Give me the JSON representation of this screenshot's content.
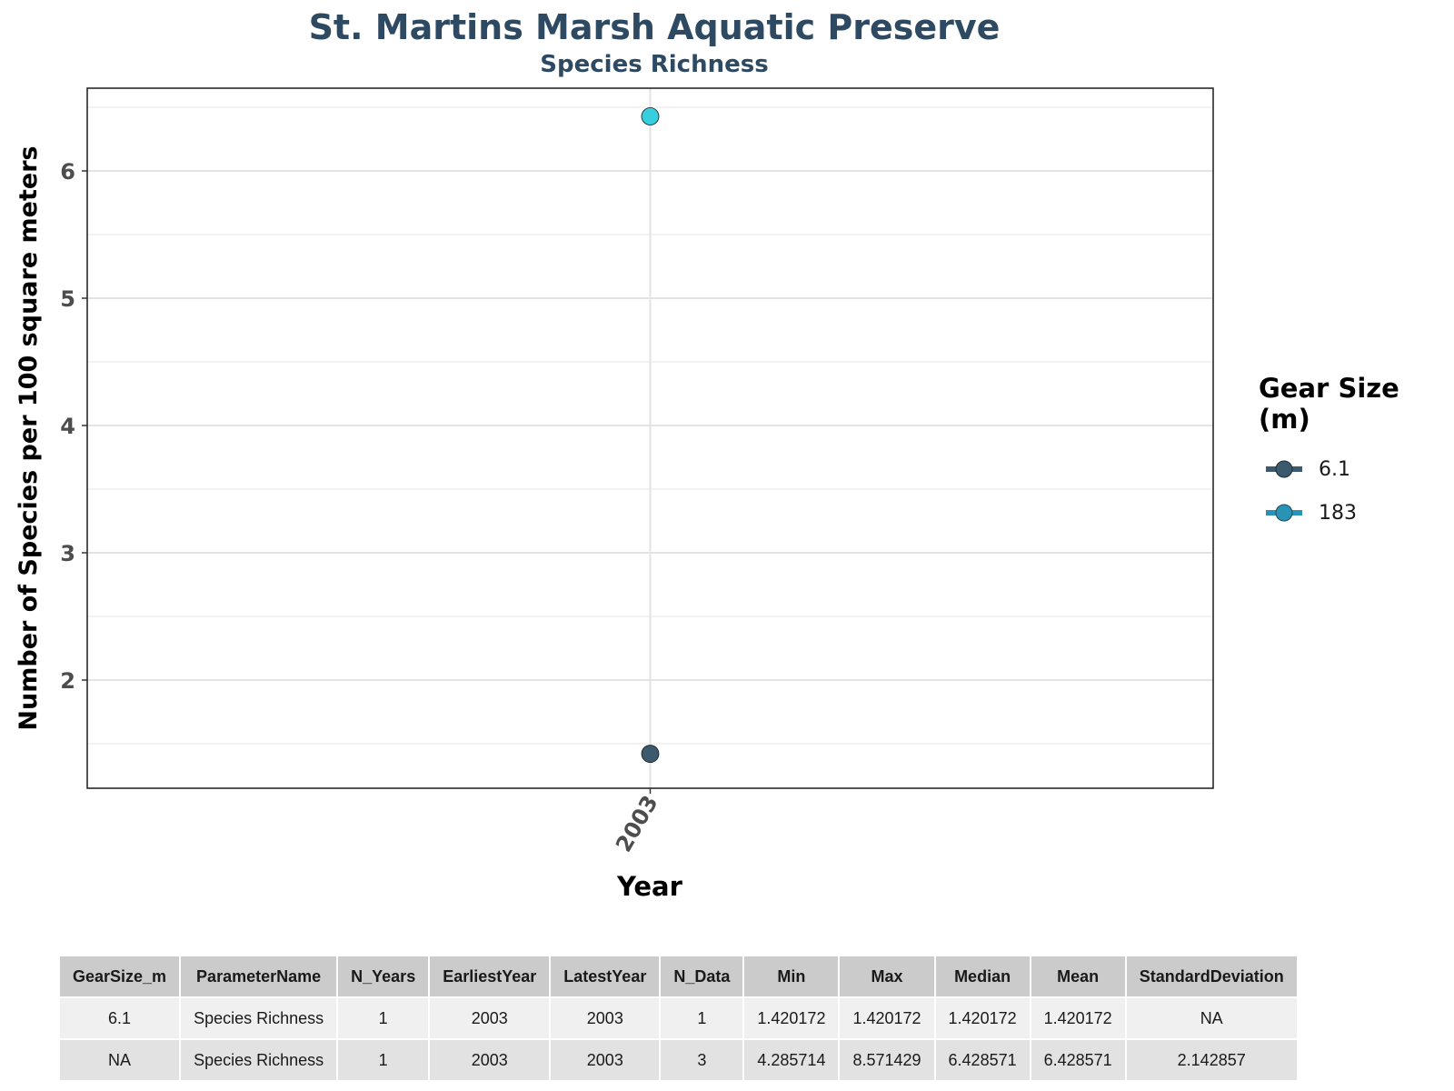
{
  "chart_data": {
    "type": "scatter",
    "title": "St. Martins Marsh Aquatic Preserve",
    "subtitle": "Species Richness",
    "xlabel": "Year",
    "ylabel": "Number of Species per 100 square meters",
    "x_ticks": [
      "2003"
    ],
    "y_ticks": [
      "2",
      "3",
      "4",
      "5",
      "6"
    ],
    "ylim": [
      1.15,
      6.65
    ],
    "grid": true,
    "legend": {
      "title": "Gear Size (m)",
      "position": "right"
    },
    "series": [
      {
        "name": "6.1",
        "color": "#3b5a6e",
        "points": [
          {
            "x": "2003",
            "y": 1.420172
          }
        ]
      },
      {
        "name": "183",
        "color": "#37cfe0",
        "points": [
          {
            "x": "2003",
            "y": 6.428571
          }
        ]
      }
    ]
  },
  "legend_keys": [
    {
      "label": "6.1",
      "line_color": "#3b5a6e",
      "dot_color": "#3b5a6e"
    },
    {
      "label": "183",
      "line_color": "#2a93b5",
      "dot_color": "#2a93b5"
    }
  ],
  "table": {
    "headers": [
      "GearSize_m",
      "ParameterName",
      "N_Years",
      "EarliestYear",
      "LatestYear",
      "N_Data",
      "Min",
      "Max",
      "Median",
      "Mean",
      "StandardDeviation"
    ],
    "rows": [
      [
        "6.1",
        "Species Richness",
        "1",
        "2003",
        "2003",
        "1",
        "1.420172",
        "1.420172",
        "1.420172",
        "1.420172",
        "NA"
      ],
      [
        "NA",
        "Species Richness",
        "1",
        "2003",
        "2003",
        "3",
        "4.285714",
        "8.571429",
        "6.428571",
        "6.428571",
        "2.142857"
      ]
    ]
  }
}
